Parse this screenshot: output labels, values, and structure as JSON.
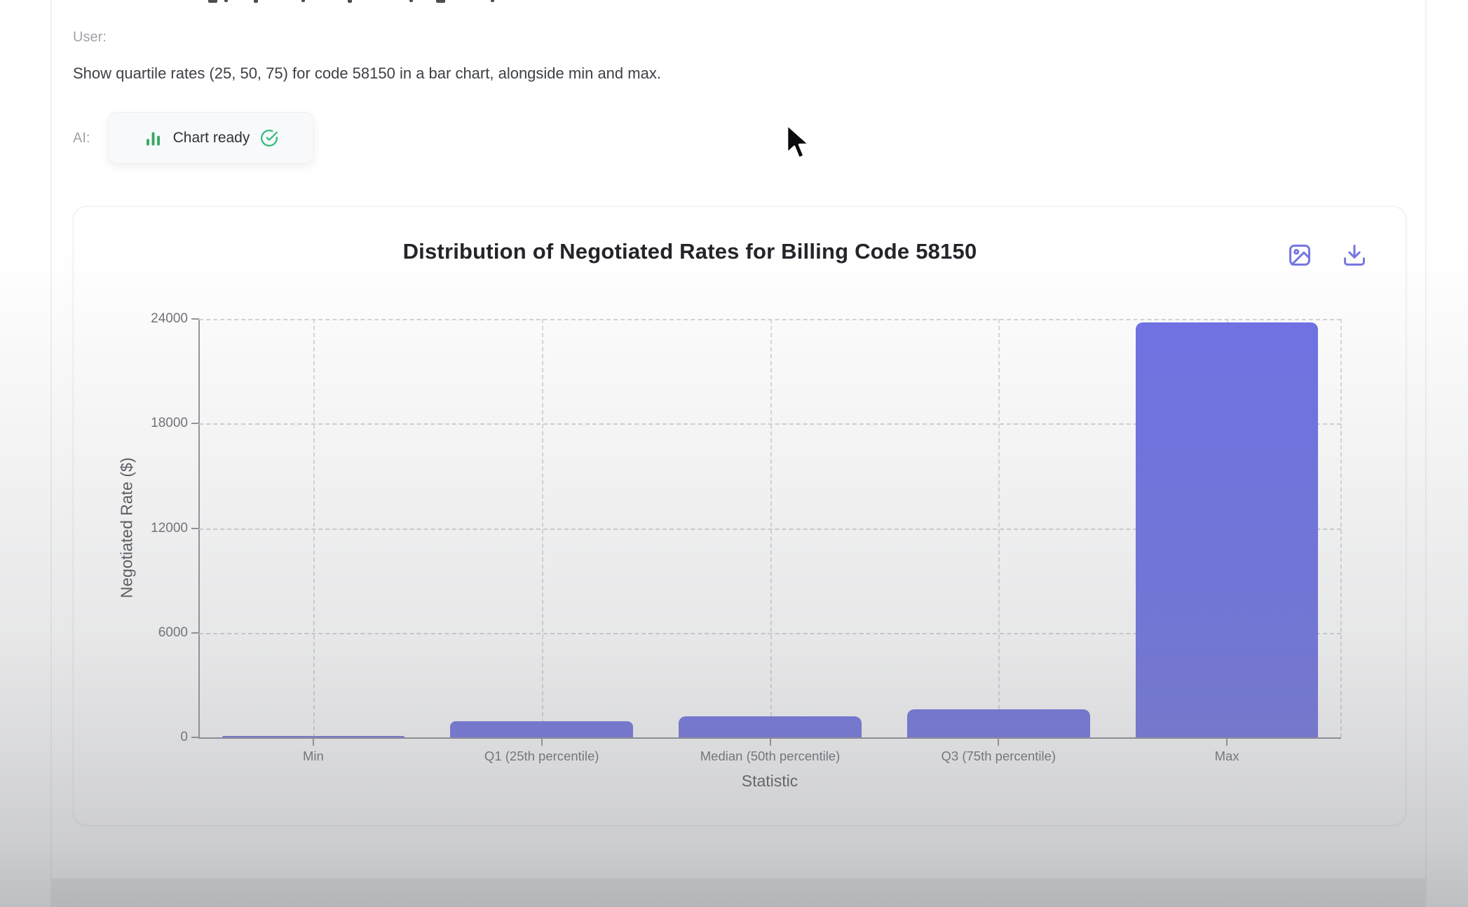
{
  "conversation": {
    "user_label": "User:",
    "user_message": "Show quartile rates (25, 50, 75) for code 58150 in a bar chart, alongside min and max.",
    "ai_label": "AI:",
    "chip": {
      "label": "Chart ready",
      "icons": [
        "bar-chart-icon",
        "check-circle-icon"
      ],
      "green_accent": "#35a862"
    }
  },
  "card": {
    "title": "Distribution of Negotiated Rates for Billing Code 58150",
    "action_icons": [
      "image-icon",
      "download-icon"
    ],
    "indigo_accent": "#7577e1"
  },
  "chart_data": {
    "type": "bar",
    "title": "Distribution of Negotiated Rates for Billing Code 58150",
    "categories": [
      "Min",
      "Q1 (25th percentile)",
      "Median (50th percentile)",
      "Q3 (75th percentile)",
      "Max"
    ],
    "values": [
      80,
      930,
      1200,
      1600,
      23800
    ],
    "xlabel": "Statistic",
    "ylabel": "Negotiated Rate ($)",
    "ylim": [
      0,
      24000
    ],
    "yticks": [
      0,
      6000,
      12000,
      18000,
      24000
    ],
    "grid": true,
    "legend": false,
    "bar_color": "#6e71e4",
    "bar_width_fraction": 0.8
  }
}
